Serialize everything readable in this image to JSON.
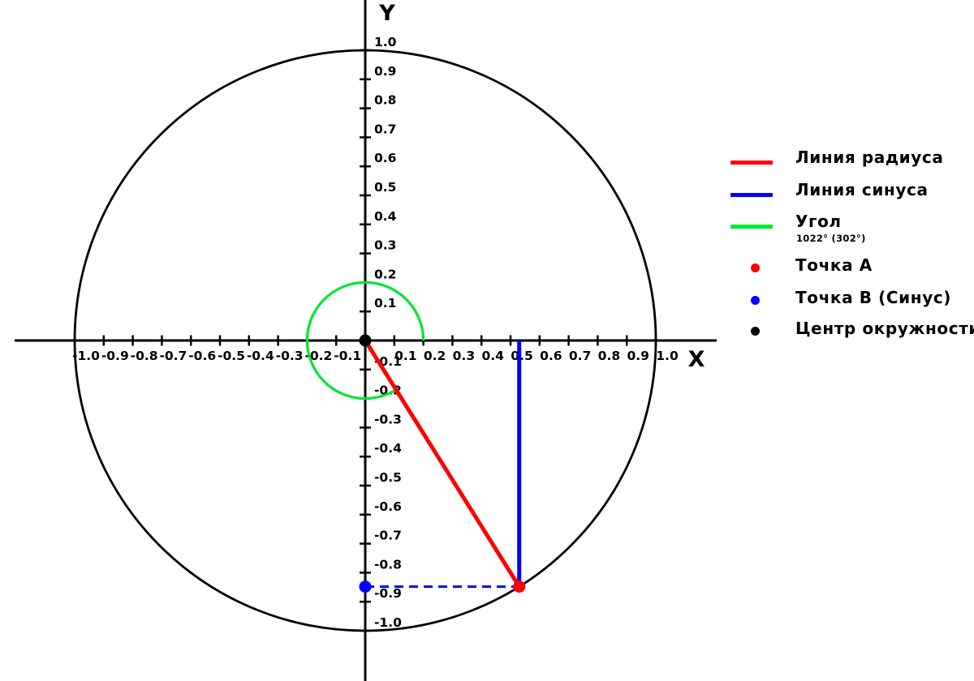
{
  "chart_data": {
    "type": "line",
    "subtype": "unit-circle-trigonometry-diagram",
    "title": "",
    "xlabel": "X",
    "ylabel": "Y",
    "xlim": [
      -1.25,
      1.25
    ],
    "ylim": [
      -1.17,
      1.17
    ],
    "grid": false,
    "tick_min": -1.0,
    "tick_max": 1.0,
    "tick_step": 0.1,
    "circle": {
      "center_x": 0,
      "center_y": 0,
      "radius": 1.0,
      "color": "#000000"
    },
    "angle": {
      "raw_deg": 1022,
      "normalized_deg": 302,
      "arc_radius": 0.2,
      "color": "#00e632"
    },
    "points": {
      "a": {
        "name": "Точка A",
        "x": 0.5299,
        "y": -0.848,
        "color": "#ff0000"
      },
      "b": {
        "name": "Точка B (Синус)",
        "x": 0.0,
        "y": -0.848,
        "color": "#0000ff"
      },
      "center": {
        "name": "Центр окружности",
        "x": 0.0,
        "y": 0.0,
        "color": "#000000"
      }
    },
    "radius_line": {
      "x1": 0,
      "y1": 0,
      "x2": 0.5299,
      "y2": -0.848,
      "color": "#ff0000",
      "style": "solid"
    },
    "sine_line": {
      "x1": 0.5299,
      "y1": 0,
      "x2": 0.5299,
      "y2": -0.848,
      "color": "#0000ff",
      "style": "solid"
    },
    "projection_line": {
      "x1": 0,
      "y1": -0.848,
      "x2": 0.5299,
      "y2": -0.848,
      "color": "#0000ff",
      "style": "dashed"
    },
    "legend_position": "right"
  },
  "legend": {
    "items": [
      {
        "type": "line",
        "color": "#ff0000",
        "label": "Линия радиуса"
      },
      {
        "type": "line",
        "color": "#0000ff",
        "label": "Линия синуса"
      },
      {
        "type": "line",
        "color": "#00e632",
        "label": "Угол",
        "sublabel": "1022° (302°)"
      },
      {
        "type": "dot",
        "color": "#ff0000",
        "label": "Точка A"
      },
      {
        "type": "dot",
        "color": "#0000ff",
        "label": "Точка B (Синус)"
      },
      {
        "type": "dot",
        "color": "#000000",
        "label": "Центр окружности"
      }
    ]
  }
}
